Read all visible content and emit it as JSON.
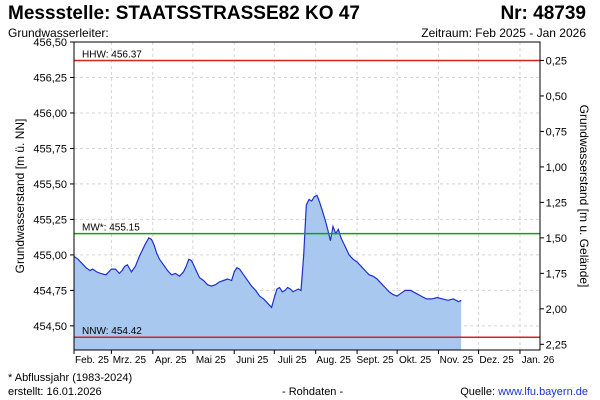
{
  "header": {
    "title": "Messstelle: STAATSSTRASSE82 KO 47",
    "nr": "Nr: 48739",
    "subtitle": "Grundwasserleiter:",
    "zeitraum": "Zeitraum: Feb 2025 - Jan 2026"
  },
  "footer": {
    "note": "* Abflussjahr (1983-2024)",
    "created": "erstellt:  16.01.2026",
    "raw": "- Rohdaten -",
    "source_prefix": "Quelle: ",
    "source_link": "www.lfu.bayern.de"
  },
  "chart_data": {
    "type": "area",
    "ylabel_left": "Grundwasserstand [m ü. NN]",
    "ylabel_right": "Grundwasserstand [m u. Gelände]",
    "ylim": [
      454.33,
      456.5
    ],
    "left_ticks": [
      "456,50",
      "456,25",
      "456,00",
      "455,75",
      "455,50",
      "455,25",
      "455,00",
      "454,75",
      "454,50"
    ],
    "left_tick_values": [
      456.5,
      456.25,
      456.0,
      455.75,
      455.5,
      455.25,
      455.0,
      454.75,
      454.5
    ],
    "right_ticks": [
      "0,25",
      "0,50",
      "0,75",
      "1,00",
      "1,25",
      "1,50",
      "1,75",
      "2,00",
      "2,25"
    ],
    "right_tick_values": [
      456.37,
      456.12,
      455.87,
      455.62,
      455.37,
      455.12,
      454.87,
      454.62,
      454.37
    ],
    "x_ticks": [
      "Feb. 25",
      "Mrz. 25",
      "Apr. 25",
      "Mai 25",
      "Juni 25",
      "Juli 25",
      "Aug. 25",
      "Sept. 25",
      "Okt. 25",
      "Nov. 25",
      "Dez. 25",
      "Jan. 26"
    ],
    "x_tick_values": [
      0,
      28,
      59,
      89,
      120,
      150,
      181,
      212,
      242,
      273,
      303,
      334
    ],
    "x_range": [
      0,
      349
    ],
    "grid": true,
    "reference_lines": [
      {
        "label": "HHW: 456.37",
        "value": 456.37,
        "color": "#e02020"
      },
      {
        "label": "MW*: 455.15",
        "value": 455.15,
        "color": "#10a010"
      },
      {
        "label": "NNW: 454.42",
        "value": 454.42,
        "color": "#e02020"
      }
    ],
    "series": [
      {
        "fill": "#a8c8f0",
        "stroke": "#1f2fd0",
        "x": [
          0,
          3,
          6,
          9,
          12,
          14,
          17,
          20,
          24,
          28,
          31,
          34,
          36,
          38,
          40,
          43,
          46,
          49,
          53,
          56,
          58,
          60,
          62,
          64,
          67,
          70,
          73,
          76,
          79,
          82,
          84,
          86,
          88,
          90,
          92,
          94,
          97,
          100,
          103,
          106,
          109,
          112,
          115,
          118,
          120,
          122,
          124,
          127,
          130,
          133,
          136,
          139,
          142,
          144,
          146,
          148,
          150,
          152,
          154,
          156,
          158,
          160,
          162,
          164,
          166,
          168,
          170,
          172,
          174,
          176,
          178,
          180,
          182,
          184,
          186,
          188,
          190,
          192,
          194,
          196,
          198,
          200,
          203,
          206,
          209,
          212,
          215,
          218,
          221,
          224,
          227,
          230,
          233,
          236,
          239,
          242,
          245,
          248,
          252,
          256,
          260,
          264,
          268,
          272,
          276,
          280,
          284,
          288,
          290
        ],
        "values": [
          454.99,
          454.97,
          454.94,
          454.91,
          454.89,
          454.9,
          454.88,
          454.87,
          454.86,
          454.9,
          454.9,
          454.87,
          454.89,
          454.92,
          454.93,
          454.88,
          454.92,
          454.99,
          455.07,
          455.12,
          455.11,
          455.07,
          455.01,
          454.97,
          454.93,
          454.89,
          454.86,
          454.87,
          454.85,
          454.88,
          454.92,
          454.97,
          454.96,
          454.92,
          454.88,
          454.84,
          454.82,
          454.79,
          454.78,
          454.79,
          454.81,
          454.82,
          454.83,
          454.82,
          454.88,
          454.91,
          454.9,
          454.86,
          454.82,
          454.78,
          454.75,
          454.71,
          454.69,
          454.67,
          454.65,
          454.63,
          454.7,
          454.76,
          454.77,
          454.74,
          454.75,
          454.77,
          454.76,
          454.74,
          454.75,
          454.76,
          454.75,
          455.0,
          455.35,
          455.39,
          455.38,
          455.41,
          455.42,
          455.37,
          455.31,
          455.25,
          455.18,
          455.1,
          455.2,
          455.15,
          455.18,
          455.12,
          455.06,
          455.0,
          454.97,
          454.95,
          454.92,
          454.89,
          454.86,
          454.85,
          454.83,
          454.8,
          454.77,
          454.74,
          454.72,
          454.71,
          454.73,
          454.75,
          454.75,
          454.73,
          454.71,
          454.69,
          454.69,
          454.7,
          454.69,
          454.68,
          454.69,
          454.67,
          454.68
        ]
      }
    ]
  }
}
